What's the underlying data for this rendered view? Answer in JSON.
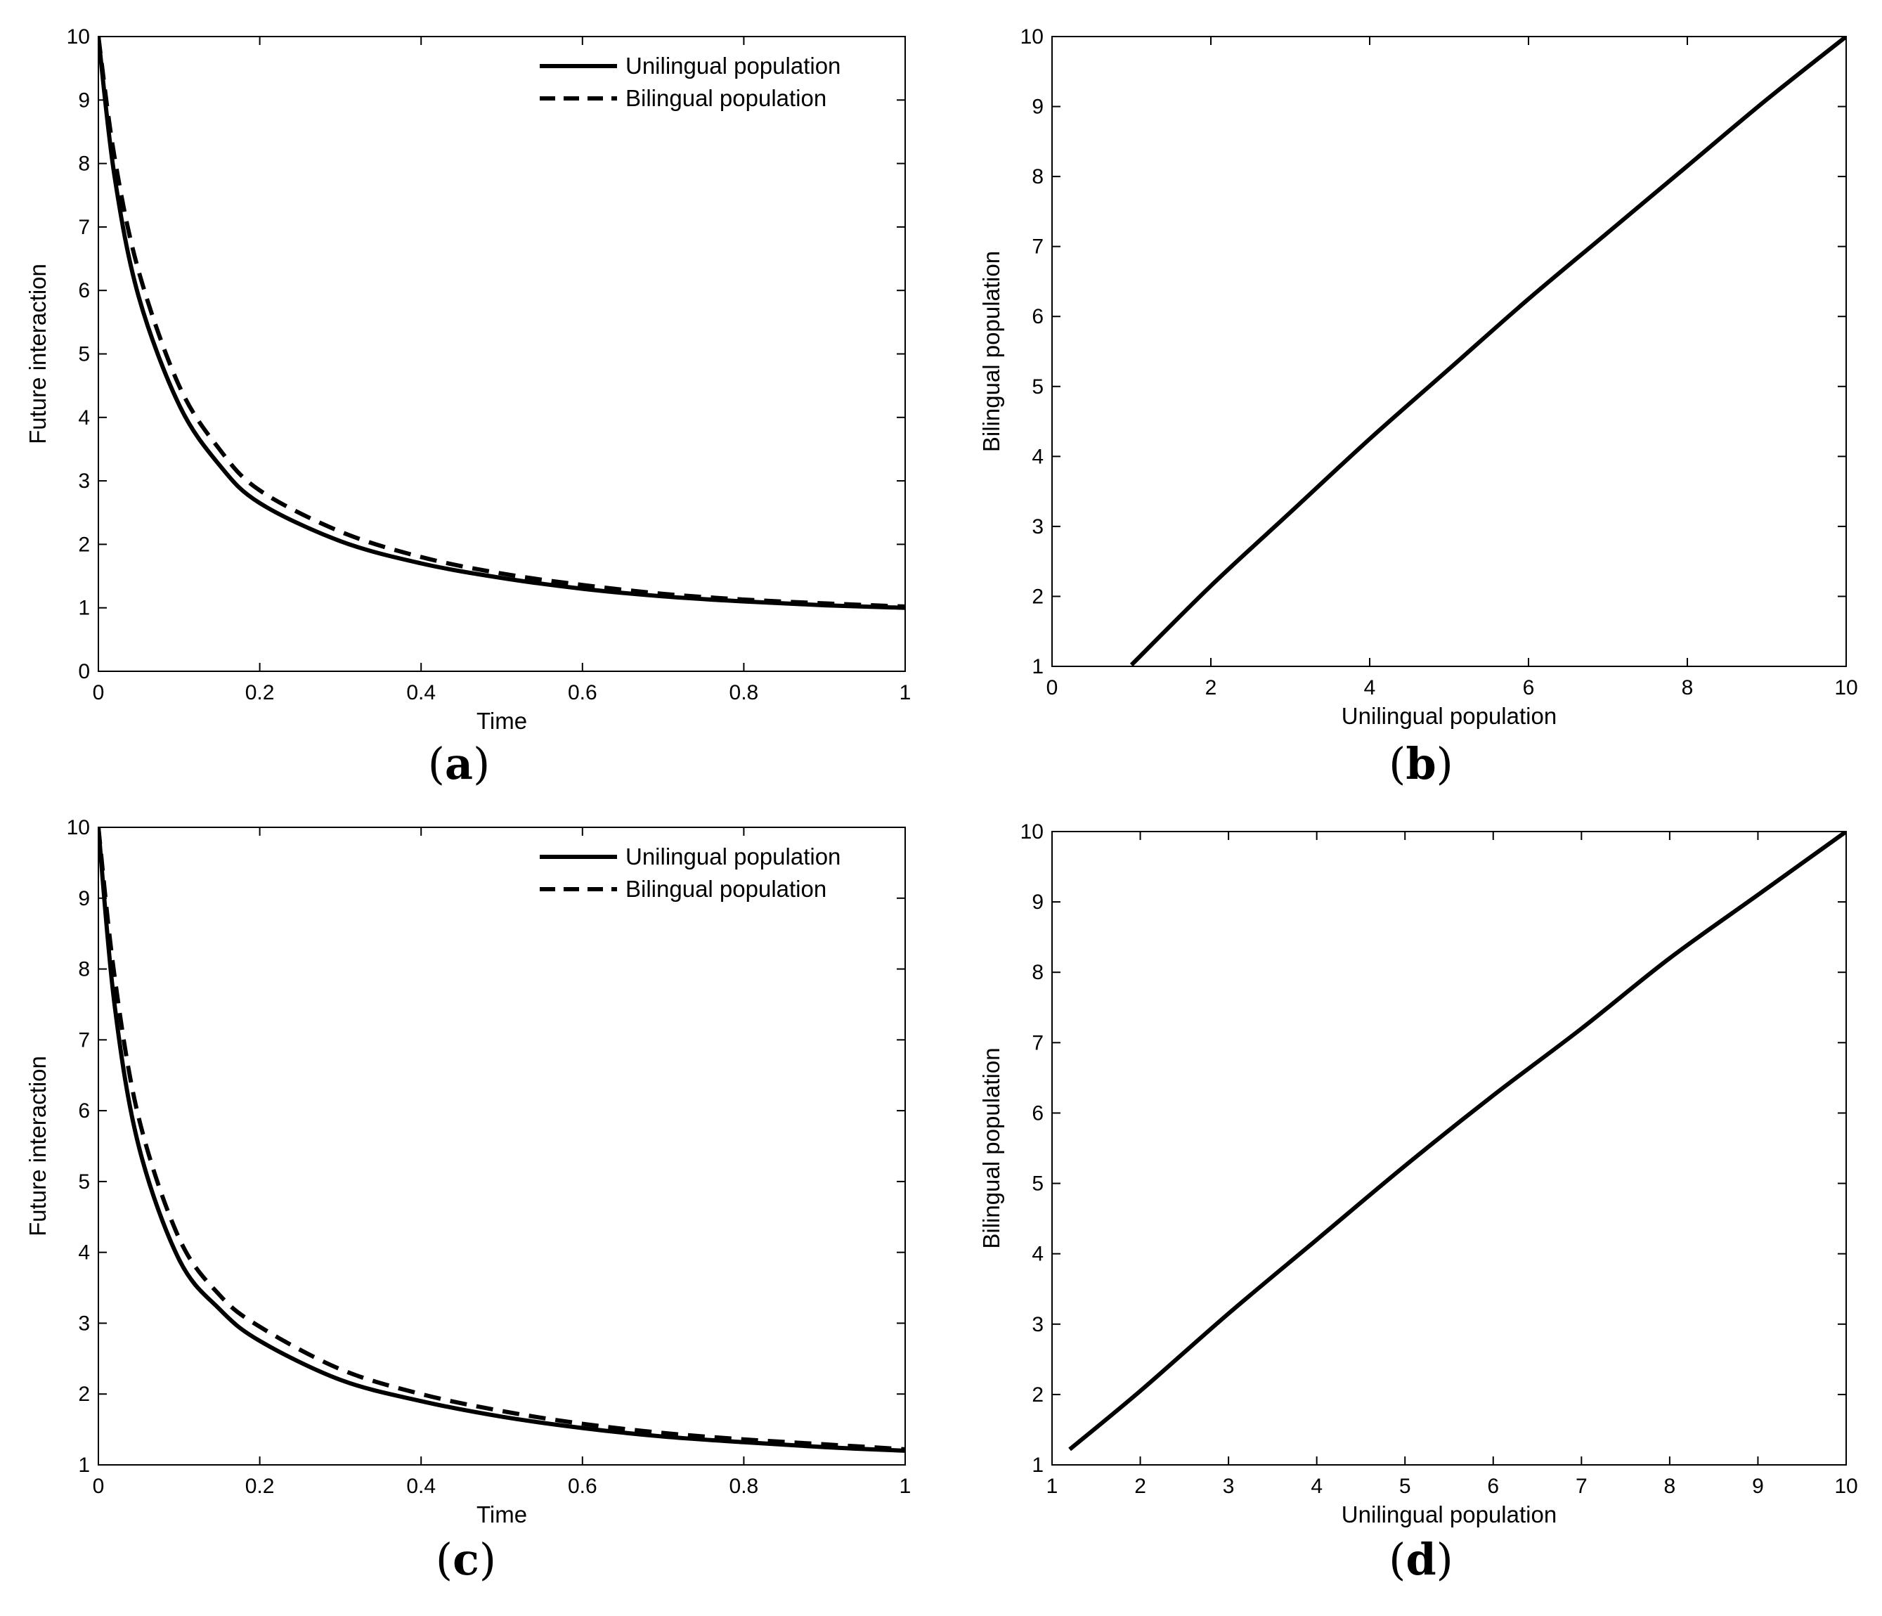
{
  "chart_data": [
    {
      "type": "line",
      "panel": "(a)",
      "panel_letter": "a",
      "xlabel": "Time",
      "ylabel": "Future interaction",
      "xlim": [
        0,
        1
      ],
      "ylim": [
        0,
        10
      ],
      "xticks": [
        0,
        0.2,
        0.4,
        0.6,
        0.8,
        1
      ],
      "xtick_labels": [
        "0",
        "0.2",
        "0.4",
        "0.6",
        "0.8",
        "1"
      ],
      "yticks": [
        0,
        1,
        2,
        3,
        4,
        5,
        6,
        7,
        8,
        9,
        10
      ],
      "ytick_labels": [
        "0",
        "1",
        "2",
        "3",
        "4",
        "5",
        "6",
        "7",
        "8",
        "9",
        "10"
      ],
      "grid": false,
      "legend": "top-right",
      "x": [
        0,
        0.02,
        0.05,
        0.1,
        0.15,
        0.2,
        0.3,
        0.4,
        0.5,
        0.6,
        0.7,
        0.8,
        0.9,
        1.0
      ],
      "series": [
        {
          "name": "Unilingual population",
          "style": "solid",
          "values": [
            10,
            7.8,
            5.9,
            4.2,
            3.25,
            2.65,
            2.05,
            1.7,
            1.47,
            1.3,
            1.18,
            1.1,
            1.04,
            1.0
          ]
        },
        {
          "name": "Bilingual population",
          "style": "dashed",
          "values": [
            10,
            8.1,
            6.3,
            4.5,
            3.5,
            2.85,
            2.2,
            1.8,
            1.54,
            1.36,
            1.22,
            1.13,
            1.07,
            1.02
          ]
        }
      ]
    },
    {
      "type": "line",
      "panel": "(b)",
      "panel_letter": "b",
      "xlabel": "Unilingual population",
      "ylabel": "Bilingual population",
      "xlim": [
        0,
        10
      ],
      "ylim": [
        1,
        10
      ],
      "xticks": [
        0,
        2,
        4,
        6,
        8,
        10
      ],
      "xtick_labels": [
        "0",
        "2",
        "4",
        "6",
        "8",
        "10"
      ],
      "yticks": [
        1,
        2,
        3,
        4,
        5,
        6,
        7,
        8,
        9,
        10
      ],
      "ytick_labels": [
        "1",
        "2",
        "3",
        "4",
        "5",
        "6",
        "7",
        "8",
        "9",
        "10"
      ],
      "grid": false,
      "x": [
        1,
        2,
        3,
        4,
        5,
        6,
        7,
        8,
        9,
        10
      ],
      "series": [
        {
          "style": "solid",
          "values": [
            1.02,
            2.15,
            3.2,
            4.25,
            5.25,
            6.25,
            7.2,
            8.15,
            9.1,
            10
          ]
        }
      ]
    },
    {
      "type": "line",
      "panel": "(c)",
      "panel_letter": "c",
      "xlabel": "Time",
      "ylabel": "Future interaction",
      "xlim": [
        0,
        1
      ],
      "ylim": [
        1,
        10
      ],
      "xticks": [
        0,
        0.2,
        0.4,
        0.6,
        0.8,
        1
      ],
      "xtick_labels": [
        "0",
        "0.2",
        "0.4",
        "0.6",
        "0.8",
        "1"
      ],
      "yticks": [
        1,
        2,
        3,
        4,
        5,
        6,
        7,
        8,
        9,
        10
      ],
      "ytick_labels": [
        "1",
        "2",
        "3",
        "4",
        "5",
        "6",
        "7",
        "8",
        "9",
        "10"
      ],
      "grid": false,
      "legend": "top-right",
      "x": [
        0,
        0.02,
        0.05,
        0.1,
        0.15,
        0.2,
        0.3,
        0.4,
        0.5,
        0.6,
        0.7,
        0.8,
        0.9,
        1.0
      ],
      "series": [
        {
          "name": "Unilingual population",
          "style": "solid",
          "values": [
            10,
            7.5,
            5.5,
            3.9,
            3.2,
            2.75,
            2.2,
            1.9,
            1.68,
            1.52,
            1.4,
            1.32,
            1.25,
            1.2
          ]
        },
        {
          "name": "Bilingual population",
          "style": "dashed",
          "values": [
            10,
            7.9,
            5.9,
            4.2,
            3.4,
            2.95,
            2.35,
            2.0,
            1.76,
            1.58,
            1.45,
            1.36,
            1.29,
            1.22
          ]
        }
      ]
    },
    {
      "type": "line",
      "panel": "(d)",
      "panel_letter": "d",
      "xlabel": "Unilingual population",
      "ylabel": "Bilingual population",
      "xlim": [
        1,
        10
      ],
      "ylim": [
        1,
        10
      ],
      "xticks": [
        1,
        2,
        3,
        4,
        5,
        6,
        7,
        8,
        9,
        10
      ],
      "xtick_labels": [
        "1",
        "2",
        "3",
        "4",
        "5",
        "6",
        "7",
        "8",
        "9",
        "10"
      ],
      "yticks": [
        1,
        2,
        3,
        4,
        5,
        6,
        7,
        8,
        9,
        10
      ],
      "ytick_labels": [
        "1",
        "2",
        "3",
        "4",
        "5",
        "6",
        "7",
        "8",
        "9",
        "10"
      ],
      "grid": false,
      "x": [
        1.2,
        2,
        3,
        4,
        5,
        6,
        7,
        8,
        9,
        10
      ],
      "series": [
        {
          "style": "solid",
          "values": [
            1.22,
            2.05,
            3.15,
            4.2,
            5.25,
            6.25,
            7.2,
            8.2,
            9.1,
            10
          ]
        }
      ]
    }
  ]
}
